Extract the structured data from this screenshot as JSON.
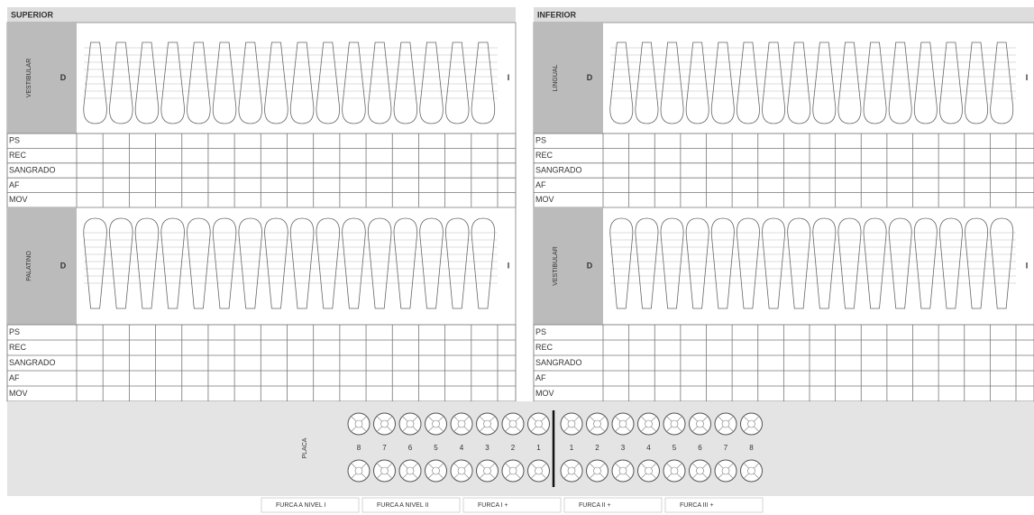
{
  "superior": {
    "title": "SUPERIOR",
    "sections": [
      {
        "side_label": "VESTIBULAR",
        "letter": "D",
        "end_letter": "I",
        "rows": [
          "PS",
          "REC",
          "SANGRADO",
          "AF",
          "MOV"
        ]
      },
      {
        "side_label": "PALATINO",
        "letter": "D",
        "end_letter": "I",
        "rows": [
          "PS",
          "REC",
          "SANGRADO",
          "AF",
          "MOV"
        ]
      }
    ]
  },
  "inferior": {
    "title": "INFERIOR",
    "sections": [
      {
        "side_label": "LINGUAL",
        "letter": "D",
        "end_letter": "I",
        "rows": [
          "PS",
          "REC",
          "SANGRADO",
          "AF",
          "MOV"
        ]
      },
      {
        "side_label": "VESTIBULAR",
        "letter": "D",
        "end_letter": "I",
        "rows": [
          "PS",
          "REC",
          "SANGRADO",
          "AF",
          "MOV"
        ]
      }
    ]
  },
  "placa": {
    "label": "PLACA",
    "numbers": [
      8,
      7,
      6,
      5,
      4,
      3,
      2,
      1,
      1,
      2,
      3,
      4,
      5,
      6,
      7,
      8
    ]
  },
  "footer": [
    "FURCA A NIVEL I",
    "FURCA A NIVEL II",
    "FURCA I +",
    "FURCA II +",
    "FURCA III +"
  ]
}
